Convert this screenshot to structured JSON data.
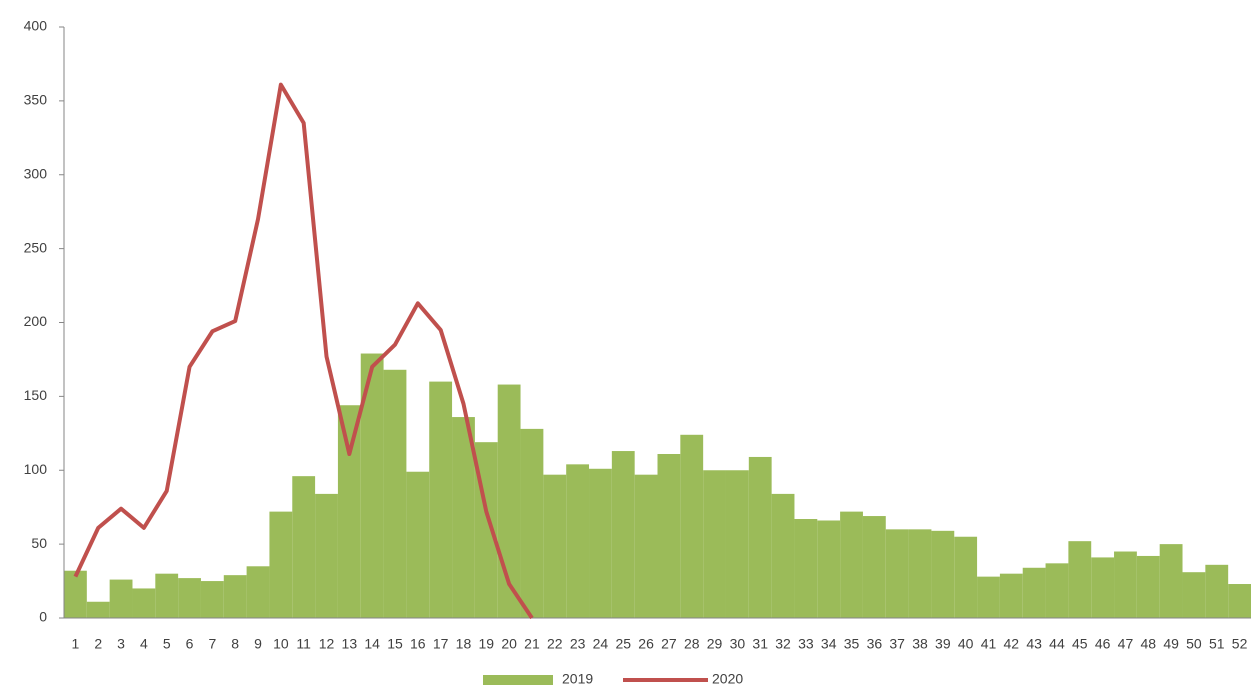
{
  "chart_data": {
    "type": "bar-line",
    "categories": [
      "1",
      "2",
      "3",
      "4",
      "5",
      "6",
      "7",
      "8",
      "9",
      "10",
      "11",
      "12",
      "13",
      "14",
      "15",
      "16",
      "17",
      "18",
      "19",
      "20",
      "21",
      "22",
      "23",
      "24",
      "25",
      "26",
      "27",
      "28",
      "29",
      "30",
      "31",
      "32",
      "33",
      "34",
      "35",
      "36",
      "37",
      "38",
      "39",
      "40",
      "41",
      "42",
      "43",
      "44",
      "45",
      "46",
      "47",
      "48",
      "49",
      "50",
      "51",
      "52"
    ],
    "series": [
      {
        "name": "2019",
        "type": "bar",
        "color": "#9bbb59",
        "values": [
          32,
          11,
          26,
          20,
          30,
          27,
          25,
          29,
          35,
          72,
          96,
          84,
          144,
          179,
          168,
          99,
          160,
          136,
          119,
          158,
          128,
          97,
          104,
          101,
          113,
          97,
          111,
          124,
          100,
          100,
          109,
          84,
          67,
          66,
          72,
          69,
          60,
          60,
          59,
          55,
          28,
          30,
          34,
          37,
          52,
          41,
          45,
          42,
          50,
          31,
          36,
          23
        ]
      },
      {
        "name": "2020",
        "type": "line",
        "color": "#c0504d",
        "values": [
          28,
          61,
          74,
          61,
          86,
          170,
          194,
          201,
          270,
          361,
          335,
          177,
          111,
          170,
          185,
          213,
          195,
          145,
          72,
          23,
          0,
          null,
          null,
          null,
          null,
          null,
          null,
          null,
          null,
          null,
          null,
          null,
          null,
          null,
          null,
          null,
          null,
          null,
          null,
          null,
          null,
          null,
          null,
          null,
          null,
          null,
          null,
          null,
          null,
          null,
          null,
          null
        ]
      }
    ],
    "ylim": [
      0,
      400
    ],
    "yticks": [
      0,
      50,
      100,
      150,
      200,
      250,
      300,
      350,
      400
    ],
    "grid": false,
    "legend": "bottom"
  }
}
